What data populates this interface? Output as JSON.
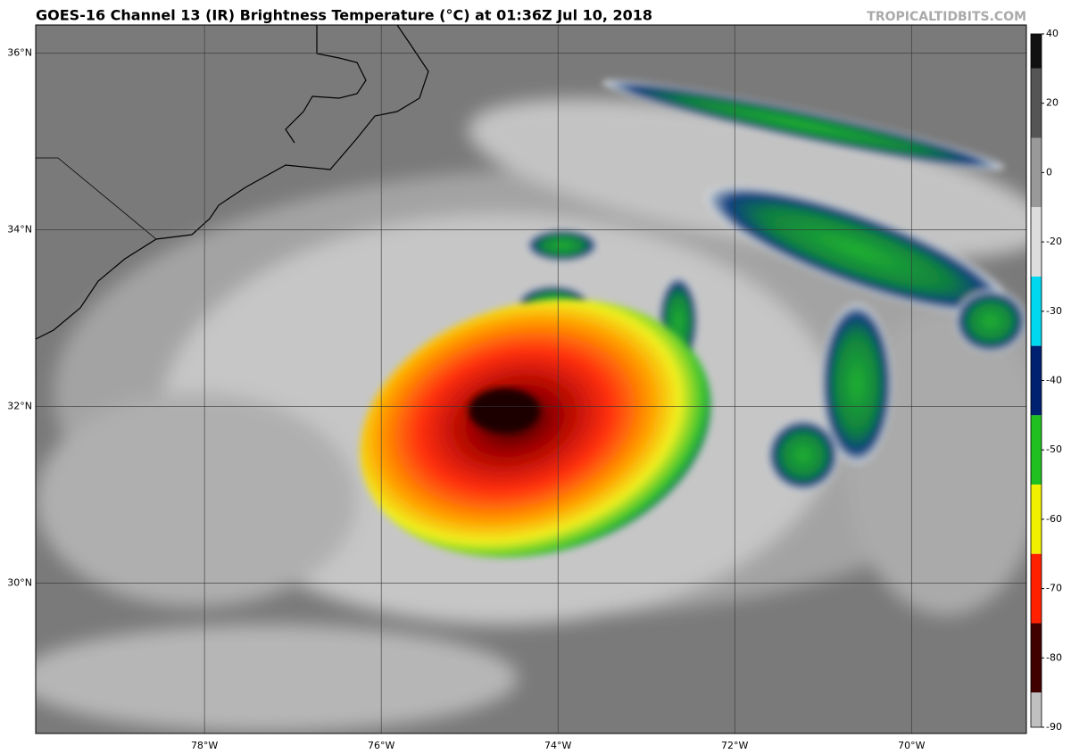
{
  "title": "GOES-16 Channel 13 (IR) Brightness Temperature (°C) at 01:36Z Jul 10, 2018",
  "watermark": "TROPICALTIDBITS.COM",
  "map": {
    "lat_range": [
      28.3,
      36.32
    ],
    "lon_range": [
      79.91,
      68.7
    ],
    "lat_ticks": [
      {
        "value": 36,
        "label": "36°N"
      },
      {
        "value": 34,
        "label": "34°N"
      },
      {
        "value": 32,
        "label": "32°N"
      },
      {
        "value": 30,
        "label": "30°N"
      }
    ],
    "lon_ticks": [
      {
        "value": 78,
        "label": "78°W"
      },
      {
        "value": 76,
        "label": "76°W"
      },
      {
        "value": 74,
        "label": "74°W"
      },
      {
        "value": 72,
        "label": "72°W"
      },
      {
        "value": 70,
        "label": "70°W"
      }
    ]
  },
  "colorbar": {
    "ticks": [
      40,
      20,
      0,
      -20,
      -30,
      -40,
      -50,
      -60,
      -70,
      -80,
      -90
    ],
    "colors": [
      "#111111",
      "#555555",
      "#999999",
      "#dddddd",
      "#00d8f0",
      "#002070",
      "#20c020",
      "#f0f000",
      "#ff2000",
      "#400000",
      "#c0c0c0",
      "#a070a0"
    ]
  }
}
